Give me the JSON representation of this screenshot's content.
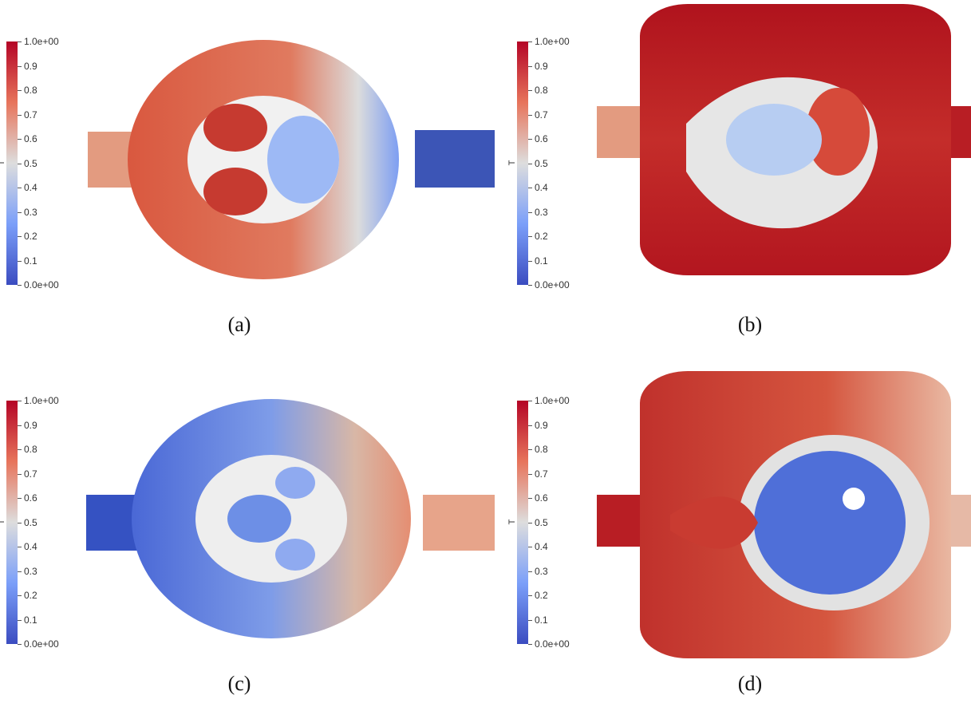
{
  "colorbar": {
    "title": "T",
    "ticks": [
      "1.0e+00",
      "0.9",
      "0.8",
      "0.7",
      "0.6",
      "0.5",
      "0.4",
      "0.3",
      "0.2",
      "0.1",
      "0.0e+00"
    ],
    "colors": {
      "high": "#b2182b",
      "mid": "#dddddd",
      "low": "#3b4cc0"
    }
  },
  "panels": [
    {
      "id": "a",
      "caption": "(a)"
    },
    {
      "id": "b",
      "caption": "(b)"
    },
    {
      "id": "c",
      "caption": "(c)"
    },
    {
      "id": "d",
      "caption": "(d)"
    }
  ]
}
